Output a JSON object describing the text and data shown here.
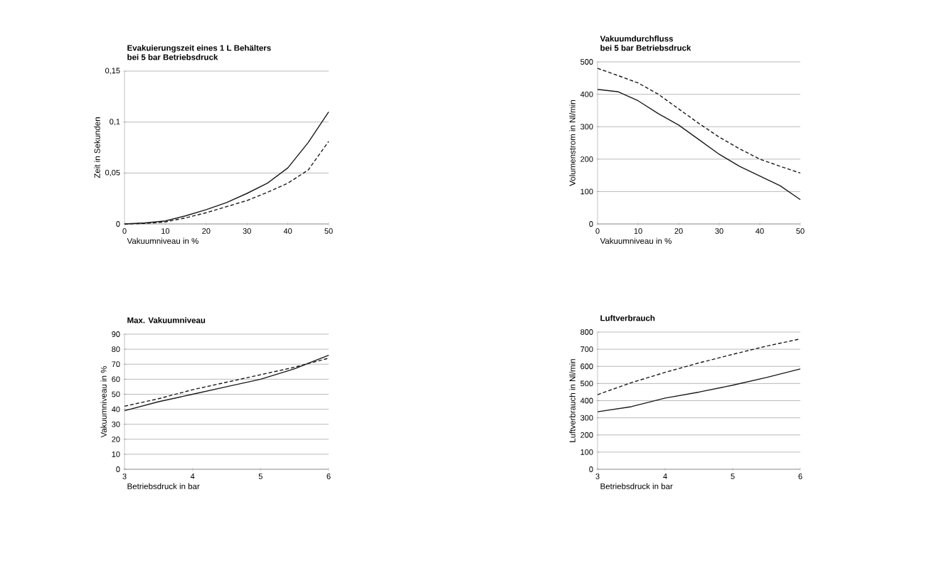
{
  "chart_data": [
    {
      "type": "line",
      "title": "Evakuierungszeit eines 1 L Behälters",
      "subtitle": "bei 5 bar Betriebsdruck",
      "xlabel": "Vakuumniveau in %",
      "ylabel": "Zeit in Sekunden",
      "x": [
        0,
        5,
        10,
        15,
        20,
        25,
        30,
        35,
        40,
        45,
        50
      ],
      "series": [
        {
          "color": "#1a1a1a",
          "line_style": "solid",
          "values": [
            0,
            0.001,
            0.003,
            0.008,
            0.014,
            0.021,
            0.03,
            0.04,
            0.055,
            0.08,
            0.11
          ]
        },
        {
          "color": "#1a1a1a",
          "line_style": "dashed",
          "values": [
            0,
            0.0005,
            0.002,
            0.006,
            0.011,
            0.017,
            0.023,
            0.031,
            0.04,
            0.053,
            0.081
          ]
        }
      ],
      "xlim": [
        0,
        50
      ],
      "ylim": [
        0,
        0.15
      ],
      "xticks": [
        0,
        10,
        20,
        30,
        40,
        50
      ],
      "yticks": [
        0,
        {
          "value": 0.05,
          "label": "0,05"
        },
        {
          "value": 0.1,
          "label": "0,1"
        },
        {
          "value": 0.15,
          "label": "0,15"
        }
      ],
      "grid": "y"
    },
    {
      "type": "line",
      "title": "Vakuumdurchfluss",
      "subtitle": "bei 5 bar Betriebsdruck",
      "xlabel": "Vakuumniveau in %",
      "ylabel": "Volumenstrom in Nl/min",
      "x": [
        0,
        5,
        10,
        15,
        20,
        25,
        30,
        35,
        40,
        45,
        50
      ],
      "series": [
        {
          "color": "#1a1a1a",
          "line_style": "solid",
          "values": [
            415,
            408,
            380,
            340,
            305,
            260,
            215,
            178,
            148,
            118,
            75
          ]
        },
        {
          "color": "#1a1a1a",
          "line_style": "dashed",
          "values": [
            480,
            458,
            435,
            400,
            355,
            310,
            268,
            232,
            200,
            178,
            157
          ]
        }
      ],
      "xlim": [
        0,
        50
      ],
      "ylim": [
        0,
        500
      ],
      "xticks": [
        0,
        10,
        20,
        30,
        40,
        50
      ],
      "yticks": [
        0,
        100,
        200,
        300,
        400,
        500
      ],
      "grid": "y"
    },
    {
      "type": "line",
      "title": "Max. Vakuumniveau",
      "xlabel": "Betriebsdruck in bar",
      "ylabel": "Vakuumniveau in %",
      "x": [
        3,
        3.5,
        4,
        4.5,
        5,
        5.5,
        6
      ],
      "series": [
        {
          "color": "#1a1a1a",
          "line_style": "solid",
          "values": [
            39,
            45,
            50,
            55,
            60,
            67,
            76
          ]
        },
        {
          "color": "#1a1a1a",
          "line_style": "dashed",
          "values": [
            42,
            47,
            53,
            58,
            63,
            68,
            74
          ]
        }
      ],
      "xlim": [
        3,
        6
      ],
      "ylim": [
        0,
        90
      ],
      "xticks": [
        3,
        4,
        5,
        6
      ],
      "yticks": [
        0,
        10,
        20,
        30,
        40,
        50,
        60,
        70,
        80,
        90
      ],
      "grid": "y"
    },
    {
      "type": "line",
      "title": "Luftverbrauch",
      "xlabel": "Betriebsdruck in bar",
      "ylabel": "Luftverbrauch in Nl/min",
      "x": [
        3,
        3.5,
        4,
        4.5,
        5,
        5.5,
        6
      ],
      "series": [
        {
          "color": "#1a1a1a",
          "line_style": "solid",
          "values": [
            335,
            365,
            415,
            450,
            490,
            535,
            585
          ]
        },
        {
          "color": "#1a1a1a",
          "line_style": "dashed",
          "values": [
            435,
            505,
            565,
            620,
            670,
            718,
            760
          ]
        }
      ],
      "xlim": [
        3,
        6
      ],
      "ylim": [
        0,
        800
      ],
      "xticks": [
        3,
        4,
        5,
        6
      ],
      "yticks": [
        0,
        100,
        200,
        300,
        400,
        500,
        600,
        700,
        800
      ],
      "grid": "y"
    }
  ]
}
